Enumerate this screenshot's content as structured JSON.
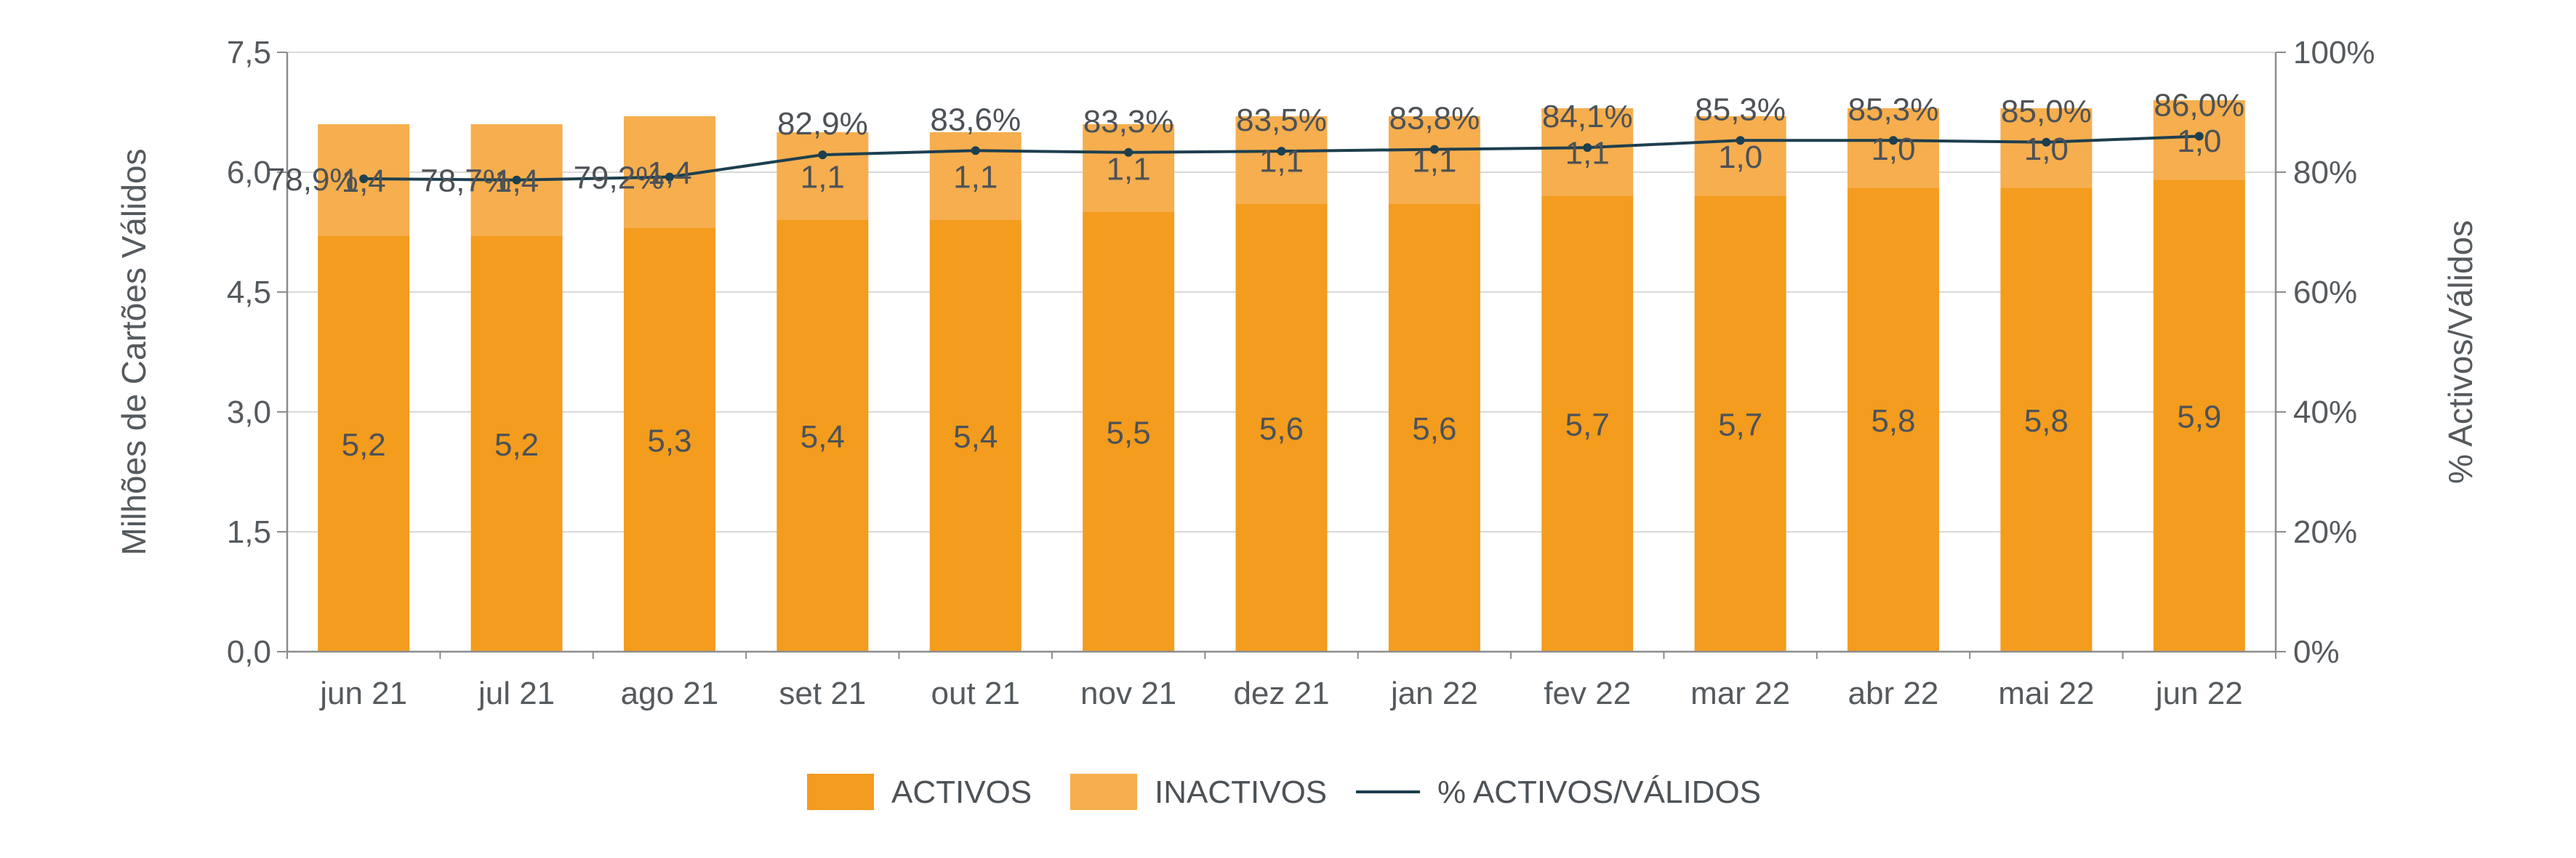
{
  "chart_data": {
    "type": "bar",
    "stacked": true,
    "categories": [
      "jun 21",
      "jul 21",
      "ago 21",
      "set 21",
      "out 21",
      "nov 21",
      "dez 21",
      "jan 22",
      "fev 22",
      "mar 22",
      "abr 22",
      "mai 22",
      "jun 22"
    ],
    "series": [
      {
        "name": "ACTIVOS",
        "kind": "bar",
        "axis": "left",
        "color": "#f39c1e",
        "values": [
          5.2,
          5.2,
          5.3,
          5.4,
          5.4,
          5.5,
          5.6,
          5.6,
          5.7,
          5.7,
          5.8,
          5.8,
          5.9
        ],
        "labels": [
          "5,2",
          "5,2",
          "5,3",
          "5,4",
          "5,4",
          "5,5",
          "5,6",
          "5,6",
          "5,7",
          "5,7",
          "5,8",
          "5,8",
          "5,9"
        ]
      },
      {
        "name": "INACTIVOS",
        "kind": "bar",
        "axis": "left",
        "color": "#f6ae4e",
        "values": [
          1.4,
          1.4,
          1.4,
          1.1,
          1.1,
          1.1,
          1.1,
          1.1,
          1.1,
          1.0,
          1.0,
          1.0,
          1.0
        ],
        "labels": [
          "1,4",
          "1,4",
          "1,4",
          "1,1",
          "1,1",
          "1,1",
          "1,1",
          "1,1",
          "1,1",
          "1,0",
          "1,0",
          "1,0",
          "1,0"
        ]
      },
      {
        "name": "% ACTIVOS/VÁLIDOS",
        "kind": "line",
        "axis": "right",
        "color": "#1d3f4f",
        "values": [
          78.9,
          78.7,
          79.2,
          82.9,
          83.6,
          83.3,
          83.5,
          83.8,
          84.1,
          85.3,
          85.3,
          85.0,
          86.0
        ],
        "labels": [
          "78,9%",
          "78,7%",
          "79,2%",
          "82,9%",
          "83,6%",
          "83,3%",
          "83,5%",
          "83,8%",
          "84,1%",
          "85,3%",
          "85,3%",
          "85,0%",
          "86,0%"
        ]
      }
    ],
    "ylabel": "Milhões de Cartões Válidos",
    "y2label": "% Activos/Válidos",
    "ylim": [
      0,
      7.5
    ],
    "y2lim": [
      0,
      100
    ],
    "yticks": [
      "0,0",
      "1,5",
      "3,0",
      "4,5",
      "6,0",
      "7,5"
    ],
    "y2ticks": [
      "0%",
      "20%",
      "40%",
      "60%",
      "80%",
      "100%"
    ],
    "grid": true,
    "legend_position": "bottom"
  }
}
